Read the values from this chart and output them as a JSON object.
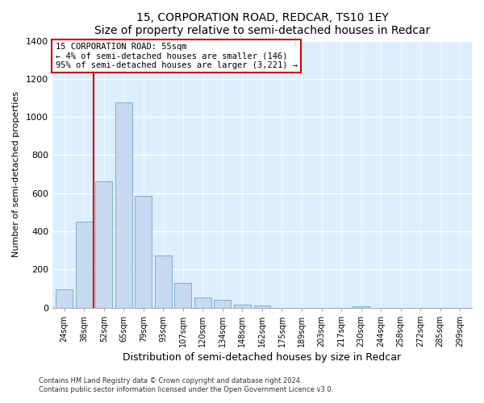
{
  "title": "15, CORPORATION ROAD, REDCAR, TS10 1EY",
  "subtitle": "Size of property relative to semi-detached houses in Redcar",
  "xlabel": "Distribution of semi-detached houses by size in Redcar",
  "ylabel": "Number of semi-detached properties",
  "bar_labels": [
    "24sqm",
    "38sqm",
    "52sqm",
    "65sqm",
    "79sqm",
    "93sqm",
    "107sqm",
    "120sqm",
    "134sqm",
    "148sqm",
    "162sqm",
    "175sqm",
    "189sqm",
    "203sqm",
    "217sqm",
    "230sqm",
    "244sqm",
    "258sqm",
    "272sqm",
    "285sqm",
    "299sqm"
  ],
  "bar_values": [
    95,
    450,
    660,
    1075,
    585,
    275,
    130,
    55,
    40,
    15,
    12,
    0,
    0,
    0,
    0,
    5,
    0,
    0,
    0,
    0,
    0
  ],
  "bar_color": "#c6d9f0",
  "bar_edge_color": "#7bafd4",
  "property_label": "15 CORPORATION ROAD: 55sqm",
  "pct_smaller": 4,
  "n_smaller": 146,
  "pct_larger": 95,
  "n_larger": 3221,
  "vline_color": "#cc0000",
  "box_color": "#cc0000",
  "ylim": [
    0,
    1400
  ],
  "yticks": [
    0,
    200,
    400,
    600,
    800,
    1000,
    1200,
    1400
  ],
  "background_color": "#ffffff",
  "plot_bg_color": "#ddeeff",
  "footer_line1": "Contains HM Land Registry data © Crown copyright and database right 2024.",
  "footer_line2": "Contains public sector information licensed under the Open Government Licence v3.0."
}
